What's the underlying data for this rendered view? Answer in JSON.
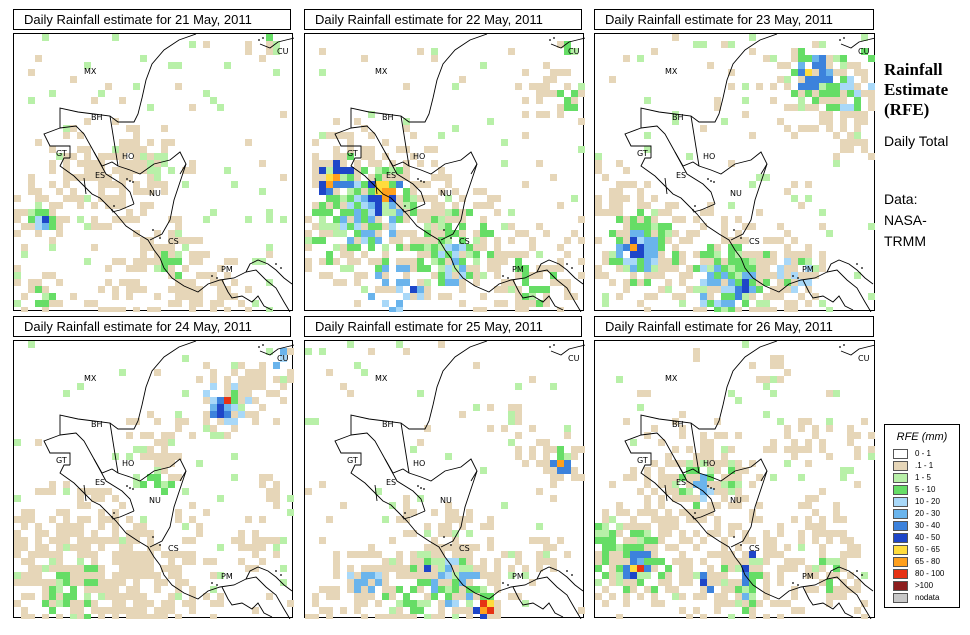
{
  "panels": [
    {
      "title": "Daily Rainfall estimate for  21 May, 2011"
    },
    {
      "title": "Daily Rainfall estimate for  22 May, 2011"
    },
    {
      "title": "Daily Rainfall estimate for  23 May, 2011"
    },
    {
      "title": "Daily Rainfall estimate for  24 May, 2011"
    },
    {
      "title": "Daily Rainfall estimate for  25 May, 2011"
    },
    {
      "title": "Daily Rainfall estimate for  26 May, 2011"
    }
  ],
  "map_labels": [
    "MX",
    "BH",
    "GT",
    "HO",
    "ES",
    "NU",
    "CS",
    "PM",
    "CU"
  ],
  "side": {
    "title": "Rainfall Estimate (RFE)",
    "subtitle": "Daily Total",
    "source": "Data: NASA-TRMM"
  },
  "legend": {
    "title": "RFE (mm)",
    "items": [
      {
        "label": "0 - 1",
        "color": "#ffffff"
      },
      {
        "label": ".1 - 1",
        "color": "#e6d6b8"
      },
      {
        "label": "1 - 5",
        "color": "#b8f0a8"
      },
      {
        "label": "5 - 10",
        "color": "#66dd66"
      },
      {
        "label": "10 - 20",
        "color": "#a8d8f8"
      },
      {
        "label": "20 - 30",
        "color": "#6ab4ec"
      },
      {
        "label": "30 - 40",
        "color": "#3c82dc"
      },
      {
        "label": "40 - 50",
        "color": "#1e46c8"
      },
      {
        "label": "50 - 65",
        "color": "#ffdc3c"
      },
      {
        "label": "65 - 80",
        "color": "#ffa01e"
      },
      {
        "label": "80 - 100",
        "color": "#e63214"
      },
      {
        "label": ">100",
        "color": "#8c1e1e"
      },
      {
        "label": "nodata",
        "color": "#c8c8c8"
      }
    ]
  }
}
